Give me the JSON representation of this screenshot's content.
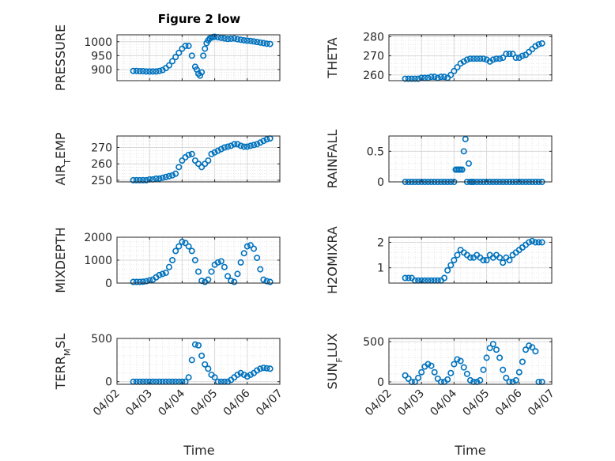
{
  "figure": {
    "title": "Figure 2 low",
    "marker_color": "#0072BD",
    "x_tick_labels": [
      "04/02",
      "04/03",
      "04/04",
      "04/05",
      "04/06",
      "04/07"
    ],
    "xlabel": "Time"
  },
  "chart_data": [
    {
      "type": "scatter",
      "ylabel": "PRESSURE",
      "ylim": [
        860,
        1025
      ],
      "xlim": [
        0,
        5
      ],
      "yticks": [
        900,
        950,
        1000
      ],
      "grid": true,
      "x": [
        0.5,
        0.6,
        0.7,
        0.8,
        0.9,
        1.0,
        1.1,
        1.2,
        1.3,
        1.4,
        1.5,
        1.6,
        1.7,
        1.8,
        1.9,
        2.0,
        2.1,
        2.2,
        2.3,
        2.4,
        2.45,
        2.5,
        2.55,
        2.6,
        2.65,
        2.7,
        2.75,
        2.8,
        2.85,
        2.9,
        2.95,
        3.0,
        3.1,
        3.2,
        3.3,
        3.4,
        3.5,
        3.6,
        3.7,
        3.8,
        3.9,
        4.0,
        4.1,
        4.2,
        4.3,
        4.4,
        4.5,
        4.6,
        4.7
      ],
      "y": [
        895,
        895,
        894,
        894,
        893,
        893,
        893,
        893,
        895,
        898,
        905,
        915,
        930,
        945,
        960,
        975,
        985,
        985,
        950,
        910,
        900,
        885,
        878,
        890,
        950,
        975,
        995,
        1005,
        1012,
        1015,
        1017,
        1018,
        1016,
        1014,
        1012,
        1010,
        1011,
        1012,
        1009,
        1007,
        1005,
        1004,
        1003,
        1001,
        999,
        997,
        995,
        993,
        992
      ]
    },
    {
      "type": "scatter",
      "ylabel": "THETA",
      "ylim": [
        257,
        281
      ],
      "xlim": [
        0,
        5
      ],
      "yticks": [
        260,
        270,
        280
      ],
      "grid": true,
      "x": [
        0.5,
        0.6,
        0.7,
        0.8,
        0.9,
        1.0,
        1.1,
        1.2,
        1.3,
        1.4,
        1.5,
        1.6,
        1.7,
        1.8,
        1.9,
        2.0,
        2.1,
        2.2,
        2.3,
        2.4,
        2.5,
        2.6,
        2.7,
        2.8,
        2.9,
        3.0,
        3.1,
        3.2,
        3.3,
        3.4,
        3.5,
        3.6,
        3.7,
        3.8,
        3.9,
        4.0,
        4.1,
        4.2,
        4.3,
        4.4,
        4.5,
        4.6,
        4.7
      ],
      "y": [
        258,
        258,
        258,
        258,
        258,
        258.5,
        258.5,
        258.5,
        259,
        259,
        258.5,
        259,
        259,
        258.5,
        260,
        262,
        264,
        266,
        267,
        268,
        268.5,
        268.5,
        268.5,
        268.5,
        268.5,
        268,
        267,
        268,
        268.5,
        268.5,
        269,
        271,
        271,
        271,
        269,
        269,
        270,
        270.5,
        272,
        273.5,
        275,
        276,
        276.5
      ]
    },
    {
      "type": "scatter",
      "ylabel": "AIR_TEMP",
      "ylim": [
        249,
        277
      ],
      "xlim": [
        0,
        5
      ],
      "yticks": [
        250,
        260,
        270
      ],
      "grid": true,
      "x": [
        0.5,
        0.6,
        0.7,
        0.8,
        0.9,
        1.0,
        1.1,
        1.2,
        1.3,
        1.4,
        1.5,
        1.6,
        1.7,
        1.8,
        1.9,
        2.0,
        2.1,
        2.2,
        2.3,
        2.4,
        2.5,
        2.6,
        2.7,
        2.8,
        2.9,
        3.0,
        3.1,
        3.2,
        3.3,
        3.4,
        3.5,
        3.6,
        3.7,
        3.8,
        3.9,
        4.0,
        4.1,
        4.2,
        4.3,
        4.4,
        4.5,
        4.6,
        4.7
      ],
      "y": [
        250,
        250,
        250,
        250,
        250,
        250.5,
        250.5,
        251,
        251,
        251.5,
        252,
        252.5,
        253,
        254,
        258,
        262,
        264,
        265.5,
        266,
        262,
        260,
        258,
        260,
        262,
        266,
        267,
        268,
        269,
        270,
        270.5,
        271,
        272,
        272,
        271,
        270.5,
        270.5,
        271,
        271.5,
        272,
        273,
        274,
        275,
        275.5
      ]
    },
    {
      "type": "scatter",
      "ylabel": "RAINFALL",
      "ylim": [
        0,
        0.75
      ],
      "xlim": [
        0,
        5
      ],
      "yticks": [
        0,
        0.5
      ],
      "grid": true,
      "x": [
        0.5,
        0.6,
        0.7,
        0.8,
        0.9,
        1.0,
        1.1,
        1.2,
        1.3,
        1.4,
        1.5,
        1.6,
        1.7,
        1.8,
        1.9,
        2.0,
        2.05,
        2.1,
        2.15,
        2.2,
        2.25,
        2.3,
        2.35,
        2.4,
        2.45,
        2.5,
        2.55,
        2.6,
        2.7,
        2.8,
        2.9,
        3.0,
        3.1,
        3.2,
        3.3,
        3.4,
        3.5,
        3.6,
        3.7,
        3.8,
        3.9,
        4.0,
        4.1,
        4.2,
        4.3,
        4.4,
        4.5,
        4.6,
        4.7
      ],
      "y": [
        0,
        0,
        0,
        0,
        0,
        0,
        0,
        0,
        0,
        0,
        0,
        0,
        0,
        0,
        0,
        0,
        0.2,
        0.2,
        0.2,
        0.2,
        0.2,
        0.5,
        0.7,
        0,
        0.3,
        0,
        0,
        0,
        0,
        0,
        0,
        0,
        0,
        0,
        0,
        0,
        0,
        0,
        0,
        0,
        0,
        0,
        0,
        0,
        0,
        0,
        0,
        0,
        0
      ]
    },
    {
      "type": "scatter",
      "ylabel": "MIXDEPTH",
      "ylim": [
        0,
        2000
      ],
      "xlim": [
        0,
        5
      ],
      "yticks": [
        0,
        1000,
        2000
      ],
      "grid": true,
      "x": [
        0.5,
        0.6,
        0.7,
        0.8,
        0.9,
        1.0,
        1.1,
        1.2,
        1.3,
        1.4,
        1.5,
        1.6,
        1.7,
        1.8,
        1.9,
        2.0,
        2.1,
        2.2,
        2.3,
        2.4,
        2.5,
        2.6,
        2.7,
        2.8,
        2.9,
        3.0,
        3.1,
        3.2,
        3.3,
        3.4,
        3.5,
        3.6,
        3.7,
        3.8,
        3.9,
        4.0,
        4.1,
        4.2,
        4.3,
        4.4,
        4.5,
        4.6,
        4.7
      ],
      "y": [
        50,
        50,
        50,
        60,
        80,
        120,
        150,
        250,
        350,
        400,
        450,
        700,
        1000,
        1400,
        1600,
        1800,
        1750,
        1600,
        1400,
        1000,
        500,
        100,
        50,
        150,
        500,
        800,
        900,
        950,
        700,
        300,
        100,
        50,
        400,
        900,
        1300,
        1600,
        1650,
        1500,
        1100,
        600,
        150,
        80,
        50
      ]
    },
    {
      "type": "scatter",
      "ylabel": "H2OMIXRA",
      "ylim": [
        0.4,
        2.2
      ],
      "xlim": [
        0,
        5
      ],
      "yticks": [
        1,
        2
      ],
      "grid": true,
      "x": [
        0.5,
        0.6,
        0.7,
        0.8,
        0.9,
        1.0,
        1.1,
        1.2,
        1.3,
        1.4,
        1.5,
        1.6,
        1.7,
        1.8,
        1.9,
        2.0,
        2.1,
        2.2,
        2.3,
        2.4,
        2.5,
        2.6,
        2.7,
        2.8,
        2.9,
        3.0,
        3.1,
        3.2,
        3.3,
        3.4,
        3.5,
        3.6,
        3.7,
        3.8,
        3.9,
        4.0,
        4.1,
        4.2,
        4.3,
        4.4,
        4.5,
        4.6,
        4.7
      ],
      "y": [
        0.6,
        0.6,
        0.6,
        0.5,
        0.5,
        0.5,
        0.5,
        0.5,
        0.5,
        0.5,
        0.5,
        0.5,
        0.6,
        0.9,
        1.1,
        1.3,
        1.5,
        1.7,
        1.6,
        1.5,
        1.4,
        1.4,
        1.5,
        1.4,
        1.3,
        1.3,
        1.5,
        1.4,
        1.5,
        1.4,
        1.2,
        1.4,
        1.3,
        1.5,
        1.6,
        1.7,
        1.8,
        1.9,
        2.0,
        2.05,
        2.0,
        2.0,
        2.0
      ]
    },
    {
      "type": "scatter",
      "ylabel": "TERR_MSL",
      "ylim": [
        -30,
        500
      ],
      "xlim": [
        0,
        5
      ],
      "yticks": [
        0,
        500
      ],
      "grid": true,
      "x": [
        0.5,
        0.6,
        0.7,
        0.8,
        0.9,
        1.0,
        1.1,
        1.2,
        1.3,
        1.4,
        1.5,
        1.6,
        1.7,
        1.8,
        1.9,
        2.0,
        2.1,
        2.2,
        2.3,
        2.4,
        2.5,
        2.6,
        2.7,
        2.8,
        2.9,
        3.0,
        3.1,
        3.2,
        3.3,
        3.4,
        3.5,
        3.6,
        3.7,
        3.8,
        3.9,
        4.0,
        4.1,
        4.2,
        4.3,
        4.4,
        4.5,
        4.6,
        4.7
      ],
      "y": [
        0,
        0,
        0,
        0,
        0,
        0,
        0,
        0,
        0,
        0,
        0,
        0,
        0,
        0,
        0,
        0,
        0,
        50,
        250,
        430,
        420,
        300,
        200,
        150,
        80,
        50,
        0,
        0,
        0,
        0,
        20,
        50,
        80,
        100,
        80,
        60,
        80,
        100,
        130,
        150,
        160,
        155,
        150
      ]
    },
    {
      "type": "scatter",
      "ylabel": "SUN_FLUX",
      "ylim": [
        -30,
        540
      ],
      "xlim": [
        0,
        5
      ],
      "yticks": [
        0,
        500
      ],
      "grid": true,
      "x": [
        0.5,
        0.6,
        0.7,
        0.8,
        0.9,
        1.0,
        1.1,
        1.2,
        1.3,
        1.4,
        1.5,
        1.6,
        1.7,
        1.8,
        1.9,
        2.0,
        2.1,
        2.2,
        2.3,
        2.4,
        2.5,
        2.6,
        2.7,
        2.8,
        2.9,
        3.0,
        3.1,
        3.2,
        3.3,
        3.4,
        3.5,
        3.6,
        3.7,
        3.8,
        3.9,
        4.0,
        4.1,
        4.2,
        4.3,
        4.4,
        4.5,
        4.6,
        4.7
      ],
      "y": [
        80,
        40,
        0,
        0,
        50,
        120,
        190,
        220,
        200,
        120,
        40,
        0,
        0,
        30,
        110,
        220,
        280,
        260,
        180,
        100,
        20,
        0,
        0,
        20,
        150,
        300,
        420,
        470,
        400,
        300,
        150,
        50,
        0,
        0,
        20,
        120,
        250,
        400,
        450,
        430,
        380,
        0,
        0
      ]
    }
  ]
}
